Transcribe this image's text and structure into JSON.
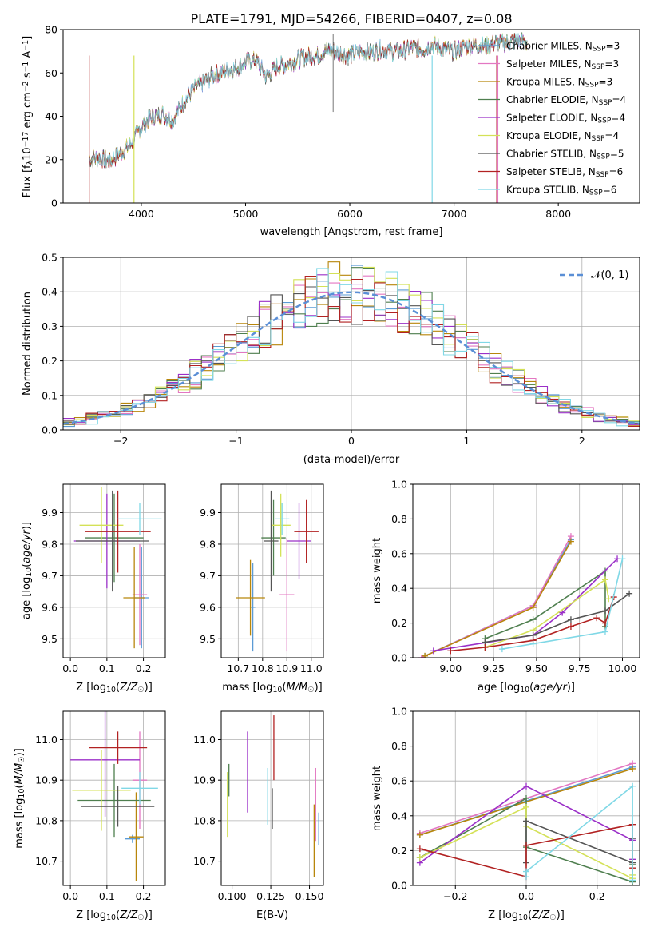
{
  "title": "PLATE=1791, MJD=54266, FIBERID=0407, z=0.08",
  "models": [
    {
      "name": "Chabrier MILES",
      "nssp": "3",
      "color": "#5b9bd5"
    },
    {
      "name": "Salpeter MILES",
      "nssp": "3",
      "color": "#e377c2"
    },
    {
      "name": "Kroupa MILES",
      "nssp": "3",
      "color": "#b8860b"
    },
    {
      "name": "Chabrier ELODIE",
      "nssp": "4",
      "color": "#4f7f4f"
    },
    {
      "name": "Salpeter ELODIE",
      "nssp": "4",
      "color": "#9b30c8"
    },
    {
      "name": "Kroupa ELODIE",
      "nssp": "4",
      "color": "#d4e157"
    },
    {
      "name": "Chabrier STELIB",
      "nssp": "5",
      "color": "#555555"
    },
    {
      "name": "Salpeter STELIB",
      "nssp": "6",
      "color": "#b22222"
    },
    {
      "name": "Kroupa STELIB",
      "nssp": "6",
      "color": "#80d8e6"
    }
  ],
  "chart_data": [
    {
      "id": "spectrum",
      "type": "line",
      "xlabel": "wavelength [Angstrom, rest frame]",
      "ylabel": "Flux [f_λ10^-17 erg cm^-2 s^-1 A^-1]",
      "xlim": [
        3250,
        8780
      ],
      "ylim": [
        0,
        80
      ],
      "xticks": [
        4000,
        5000,
        6000,
        7000,
        8000
      ],
      "yticks": [
        0,
        20,
        40,
        60,
        80
      ],
      "grid": false,
      "x": [
        3500,
        3600,
        3700,
        3800,
        3900,
        4000,
        4100,
        4200,
        4300,
        4400,
        4500,
        4600,
        4700,
        4800,
        4900,
        5000,
        5100,
        5200,
        5300,
        5400,
        5500,
        5600,
        5700,
        5800,
        5900,
        6000,
        6100,
        6200,
        6300,
        6400,
        6500,
        6600,
        6700,
        6800,
        6900,
        7000,
        7100,
        7200,
        7300,
        7400,
        7500,
        7600,
        7700
      ],
      "y": [
        20,
        21,
        19,
        23,
        27,
        35,
        40,
        41,
        38,
        46,
        52,
        56,
        59,
        61,
        62,
        65,
        66,
        58,
        63,
        64,
        66,
        68,
        68,
        71,
        69,
        68,
        70,
        69,
        71,
        70,
        70,
        72,
        71,
        73,
        71,
        70,
        72,
        73,
        72,
        74,
        74,
        75,
        74
      ]
    },
    {
      "id": "residuals",
      "type": "bar",
      "xlabel": "(data-model)/error",
      "ylabel": "Normed distribution",
      "xlim": [
        -2.5,
        2.5
      ],
      "ylim": [
        0,
        0.5
      ],
      "xticks": [
        -2,
        -1,
        0,
        1,
        2
      ],
      "yticks": [
        0.0,
        0.1,
        0.2,
        0.3,
        0.4,
        0.5
      ],
      "grid": true,
      "legend_position": "top-right",
      "gaussian_label": "N(0,1)"
    },
    {
      "id": "age_vs_Z",
      "type": "scatter",
      "xlabel": "Z [log10(Z/Z☉)]",
      "ylabel": "age [log10(age/yr)]",
      "xlim": [
        -0.02,
        0.26
      ],
      "ylim": [
        9.44,
        9.99
      ],
      "xticks": [
        0.0,
        0.1,
        0.2
      ],
      "yticks": [
        9.5,
        9.6,
        9.7,
        9.8,
        9.9
      ],
      "grid": true,
      "points": [
        {
          "m": 0,
          "x": 0.195,
          "y": 9.63,
          "ex": 0.02,
          "ey": 0.16
        },
        {
          "m": 1,
          "x": 0.19,
          "y": 9.64,
          "ex": 0.02,
          "ey": 0.16
        },
        {
          "m": 2,
          "x": 0.175,
          "y": 9.63,
          "ex": 0.03,
          "ey": 0.16
        },
        {
          "m": 3,
          "x": 0.12,
          "y": 9.82,
          "ex": 0.08,
          "ey": 0.14
        },
        {
          "m": 4,
          "x": 0.1,
          "y": 9.81,
          "ex": 0.09,
          "ey": 0.15
        },
        {
          "m": 5,
          "x": 0.085,
          "y": 9.86,
          "ex": 0.06,
          "ey": 0.12
        },
        {
          "m": 6,
          "x": 0.115,
          "y": 9.81,
          "ex": 0.1,
          "ey": 0.16
        },
        {
          "m": 7,
          "x": 0.13,
          "y": 9.84,
          "ex": 0.09,
          "ey": 0.13
        },
        {
          "m": 8,
          "x": 0.19,
          "y": 9.88,
          "ex": 0.06,
          "ey": 0.05
        }
      ]
    },
    {
      "id": "age_vs_mass",
      "type": "scatter",
      "xlabel": "mass [log10(M/M☉)]",
      "ylabel": "",
      "xlim": [
        10.63,
        11.05
      ],
      "ylim": [
        9.44,
        9.99
      ],
      "xticks": [
        10.7,
        10.8,
        10.9,
        11.0
      ],
      "yticks": [
        9.5,
        9.6,
        9.7,
        9.8,
        9.9
      ],
      "grid": true,
      "points": [
        {
          "m": 0,
          "x": 10.76,
          "y": 9.6,
          "ex": 0.01,
          "ey": 0.14
        },
        {
          "m": 1,
          "x": 10.9,
          "y": 9.64,
          "ex": 0.03,
          "ey": 0.18
        },
        {
          "m": 2,
          "x": 10.75,
          "y": 9.63,
          "ex": 0.06,
          "ey": 0.12
        },
        {
          "m": 3,
          "x": 10.845,
          "y": 9.82,
          "ex": 0.05,
          "ey": 0.12
        },
        {
          "m": 4,
          "x": 10.95,
          "y": 9.81,
          "ex": 0.05,
          "ey": 0.12
        },
        {
          "m": 5,
          "x": 10.875,
          "y": 9.86,
          "ex": 0.04,
          "ey": 0.1
        },
        {
          "m": 6,
          "x": 10.835,
          "y": 9.81,
          "ex": 0.03,
          "ey": 0.16
        },
        {
          "m": 7,
          "x": 10.98,
          "y": 9.84,
          "ex": 0.05,
          "ey": 0.1
        },
        {
          "m": 8,
          "x": 10.88,
          "y": 9.88,
          "ex": 0.03,
          "ey": 0.05
        }
      ]
    },
    {
      "id": "weight_vs_age",
      "type": "line",
      "xlabel": "age [log10(age/yr)]",
      "ylabel": "mass weight",
      "xlim": [
        8.78,
        10.1
      ],
      "ylim": [
        0,
        1
      ],
      "xticks": [
        9.0,
        9.25,
        9.5,
        9.75,
        10.0
      ],
      "yticks": [
        0.0,
        0.2,
        0.4,
        0.6,
        0.8,
        1.0
      ],
      "grid": true,
      "series": [
        {
          "m": 0,
          "x": [
            8.85,
            9.48,
            9.7
          ],
          "y": [
            0.01,
            0.3,
            0.68
          ]
        },
        {
          "m": 1,
          "x": [
            8.83,
            9.48,
            9.7
          ],
          "y": [
            0.0,
            0.3,
            0.7
          ]
        },
        {
          "m": 2,
          "x": [
            8.85,
            9.48,
            9.7
          ],
          "y": [
            0.01,
            0.29,
            0.67
          ]
        },
        {
          "m": 3,
          "x": [
            9.2,
            9.48,
            9.9,
            9.9
          ],
          "y": [
            0.11,
            0.22,
            0.5,
            0.18
          ]
        },
        {
          "m": 4,
          "x": [
            8.9,
            9.48,
            9.65,
            9.97
          ],
          "y": [
            0.04,
            0.13,
            0.26,
            0.57
          ]
        },
        {
          "m": 5,
          "x": [
            9.2,
            9.48,
            9.9,
            9.92
          ],
          "y": [
            0.06,
            0.16,
            0.45,
            0.34
          ]
        },
        {
          "m": 6,
          "x": [
            9.2,
            9.48,
            9.7,
            9.9,
            10.04
          ],
          "y": [
            0.09,
            0.13,
            0.22,
            0.27,
            0.37
          ]
        },
        {
          "m": 7,
          "x": [
            9.0,
            9.2,
            9.48,
            9.7,
            9.85,
            9.9,
            9.95
          ],
          "y": [
            0.04,
            0.06,
            0.1,
            0.18,
            0.23,
            0.2,
            0.35
          ]
        },
        {
          "m": 8,
          "x": [
            9.3,
            9.48,
            9.9,
            10.0
          ],
          "y": [
            0.05,
            0.08,
            0.15,
            0.57
          ]
        }
      ]
    },
    {
      "id": "mass_vs_Z",
      "type": "scatter",
      "xlabel": "Z [log10(Z/Z☉)]",
      "ylabel": "mass [log10(M/M☉)]",
      "xlim": [
        -0.02,
        0.26
      ],
      "ylim": [
        10.64,
        11.07
      ],
      "xticks": [
        0.0,
        0.1,
        0.2
      ],
      "yticks": [
        10.7,
        10.8,
        10.9,
        11.0
      ],
      "grid": true,
      "points": [
        {
          "m": 0,
          "x": 0.17,
          "y": 10.755,
          "ex": 0.02,
          "ey": 0.01
        },
        {
          "m": 1,
          "x": 0.19,
          "y": 10.9,
          "ex": 0.02,
          "ey": 0.12
        },
        {
          "m": 2,
          "x": 0.18,
          "y": 10.76,
          "ex": 0.02,
          "ey": 0.11
        },
        {
          "m": 3,
          "x": 0.12,
          "y": 10.85,
          "ex": 0.1,
          "ey": 0.09
        },
        {
          "m": 4,
          "x": 0.095,
          "y": 10.95,
          "ex": 0.095,
          "ey": 0.14
        },
        {
          "m": 5,
          "x": 0.085,
          "y": 10.875,
          "ex": 0.08,
          "ey": 0.1
        },
        {
          "m": 6,
          "x": 0.13,
          "y": 10.835,
          "ex": 0.1,
          "ey": 0.05
        },
        {
          "m": 7,
          "x": 0.13,
          "y": 10.98,
          "ex": 0.08,
          "ey": 0.04
        },
        {
          "m": 8,
          "x": 0.19,
          "y": 10.88,
          "ex": 0.05,
          "ey": 0.04
        }
      ]
    },
    {
      "id": "mass_vs_EBV",
      "type": "scatter",
      "xlabel": "E(B-V)",
      "ylabel": "",
      "xlim": [
        0.093,
        0.159
      ],
      "ylim": [
        10.64,
        11.07
      ],
      "xticks": [
        0.1,
        0.125,
        0.15
      ],
      "yticks": [
        10.7,
        10.8,
        10.9,
        11.0
      ],
      "grid": true,
      "points": [
        {
          "m": 0,
          "x": 0.156,
          "y": 10.78,
          "ey": 0.04
        },
        {
          "m": 1,
          "x": 0.154,
          "y": 10.84,
          "ey": 0.09
        },
        {
          "m": 2,
          "x": 0.153,
          "y": 10.75,
          "ey": 0.09
        },
        {
          "m": 3,
          "x": 0.098,
          "y": 10.9,
          "ey": 0.04
        },
        {
          "m": 4,
          "x": 0.11,
          "y": 10.92,
          "ey": 0.1
        },
        {
          "m": 5,
          "x": 0.097,
          "y": 10.84,
          "ey": 0.08
        },
        {
          "m": 6,
          "x": 0.126,
          "y": 10.83,
          "ey": 0.05
        },
        {
          "m": 7,
          "x": 0.127,
          "y": 10.98,
          "ey": 0.08
        },
        {
          "m": 8,
          "x": 0.123,
          "y": 10.86,
          "ey": 0.07
        }
      ]
    },
    {
      "id": "weight_vs_Z",
      "type": "line",
      "xlabel": "Z [log10(Z/Z☉)]",
      "ylabel": "mass weight",
      "xlim": [
        -0.32,
        0.32
      ],
      "ylim": [
        0,
        1
      ],
      "xticks": [
        -0.2,
        0.0,
        0.2
      ],
      "yticks": [
        0.0,
        0.2,
        0.4,
        0.6,
        0.8,
        1.0
      ],
      "grid": true,
      "series": [
        {
          "m": 0,
          "x": [
            -0.3,
            0.3
          ],
          "y": [
            0.29,
            0.68
          ]
        },
        {
          "m": 1,
          "x": [
            -0.3,
            0.3
          ],
          "y": [
            0.3,
            0.7
          ]
        },
        {
          "m": 2,
          "x": [
            -0.3,
            0.3
          ],
          "y": [
            0.29,
            0.67
          ]
        },
        {
          "m": 3,
          "x": [
            -0.3,
            0.0,
            0.0,
            0.3,
            0.3
          ],
          "y": [
            0.16,
            0.5,
            0.22,
            0.02,
            0.12
          ]
        },
        {
          "m": 4,
          "x": [
            -0.3,
            0.0,
            0.3,
            0.3
          ],
          "y": [
            0.13,
            0.57,
            0.26,
            0.15
          ]
        },
        {
          "m": 5,
          "x": [
            -0.3,
            0.0,
            0.0,
            0.3,
            0.3
          ],
          "y": [
            0.16,
            0.45,
            0.34,
            0.04,
            0.06
          ]
        },
        {
          "m": 6,
          "x": [
            0.0,
            0.0,
            0.3,
            0.3
          ],
          "y": [
            0.13,
            0.37,
            0.13,
            0.27
          ]
        },
        {
          "m": 7,
          "x": [
            -0.3,
            0.0,
            0.0,
            0.3,
            0.3
          ],
          "y": [
            0.21,
            0.05,
            0.23,
            0.35,
            0.1
          ]
        },
        {
          "m": 8,
          "x": [
            0.0,
            0.0,
            0.3,
            0.3
          ],
          "y": [
            0.05,
            0.08,
            0.57,
            0.03
          ]
        }
      ]
    }
  ]
}
